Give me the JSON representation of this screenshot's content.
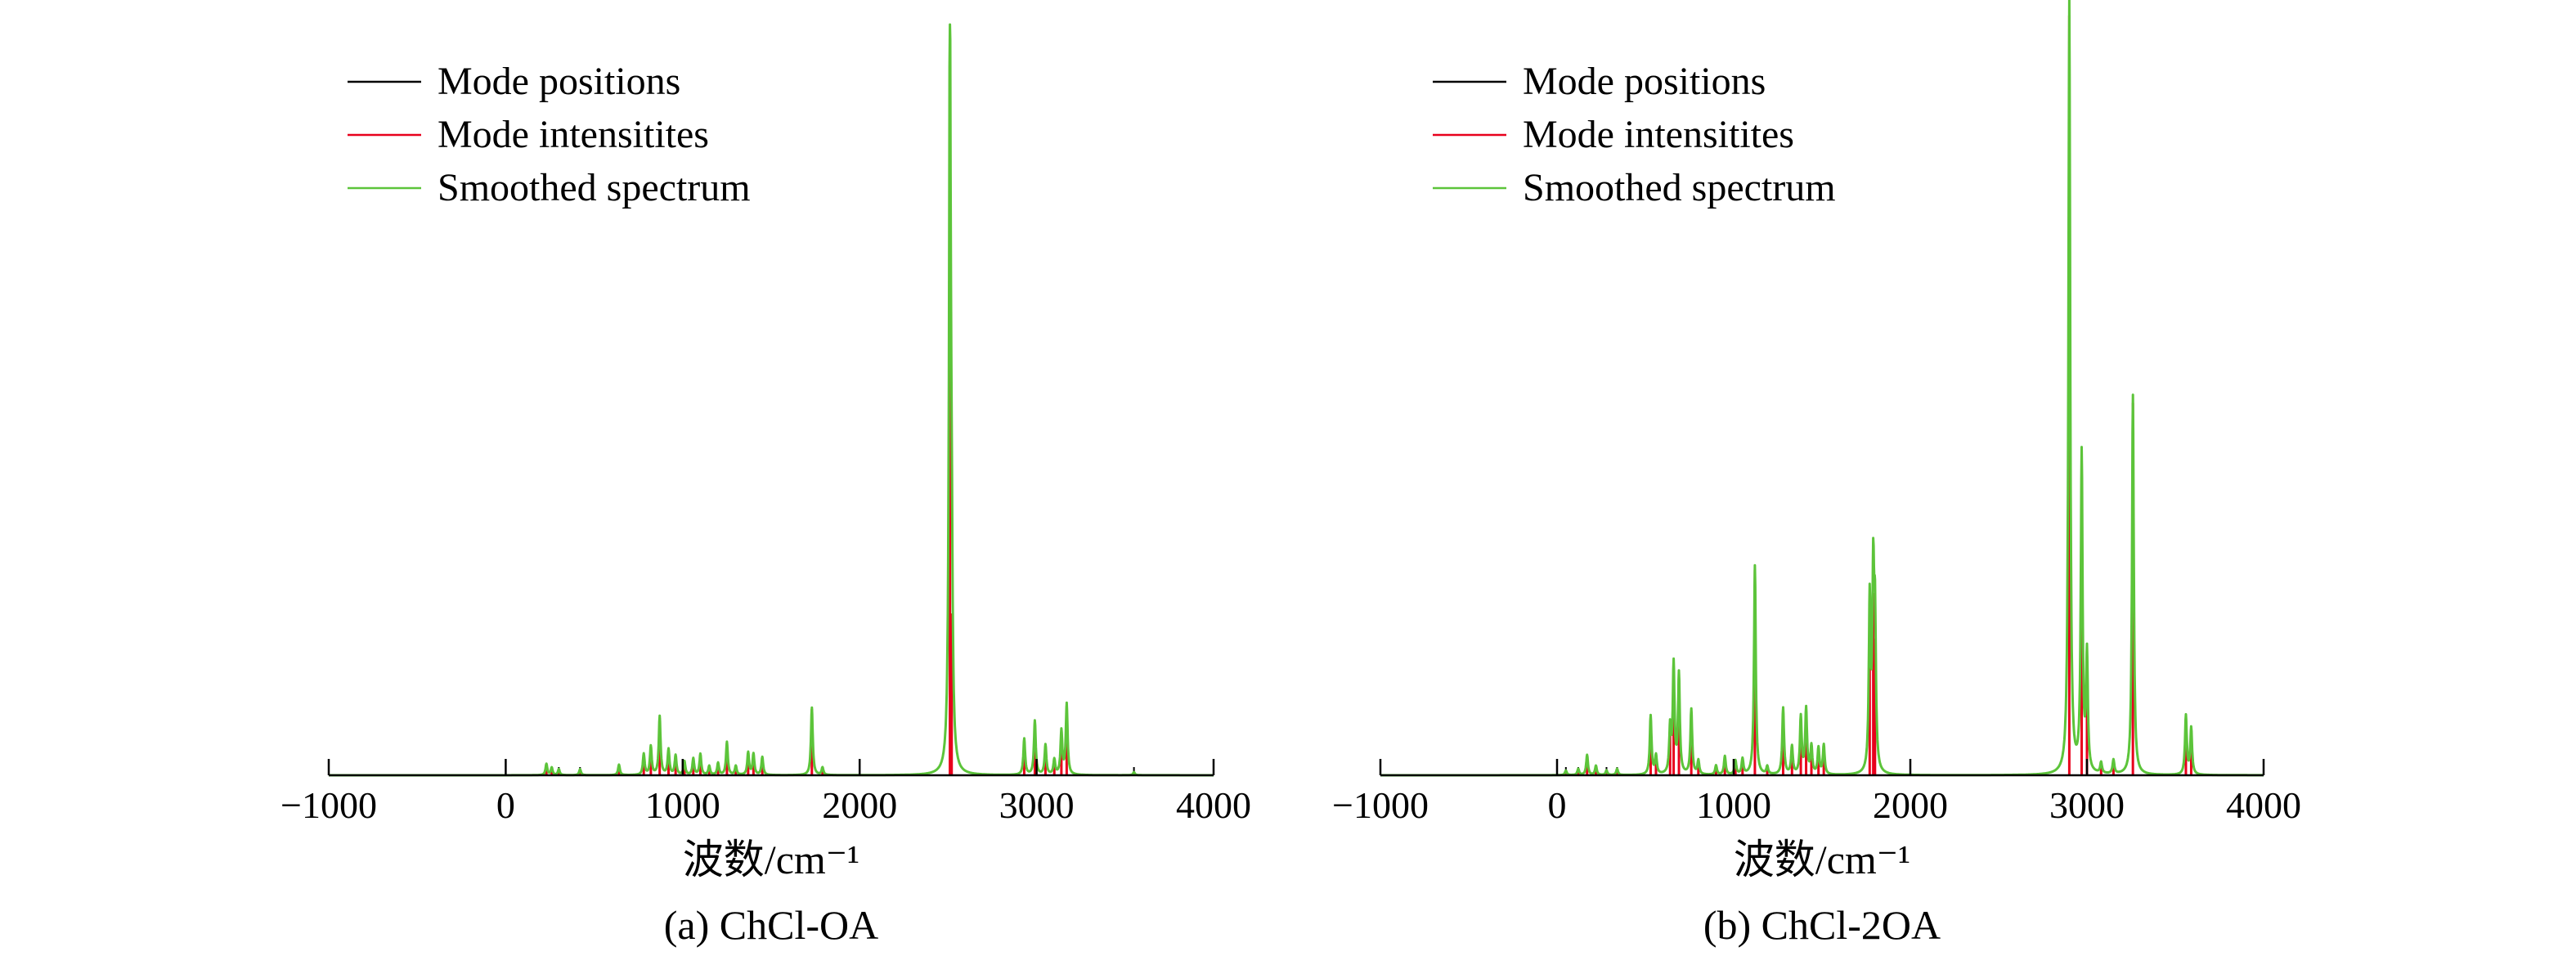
{
  "colors": {
    "positions": "#000000",
    "intensities": "#e8001c",
    "smoothed": "#5cc43a"
  },
  "chart_data": [
    {
      "type": "line",
      "caption": "(a) ChCl-OA",
      "xlabel": "波数/cm⁻¹",
      "ylabel": "",
      "xlim": [
        -1000,
        4000
      ],
      "xticks": [
        -1000,
        0,
        1000,
        2000,
        3000,
        4000
      ],
      "xtick_labels": [
        "−1000",
        "0",
        "1000",
        "2000",
        "3000",
        "4000"
      ],
      "ylim": [
        0,
        1
      ],
      "legend": {
        "position": "top-left",
        "entries": [
          {
            "label": "Mode positions",
            "series": "positions"
          },
          {
            "label": "Mode intensitites",
            "series": "intensities"
          },
          {
            "label": "Smoothed spectrum",
            "series": "smoothed"
          }
        ]
      },
      "modes": [
        [
          230,
          0.015
        ],
        [
          260,
          0.01
        ],
        [
          300,
          0.008
        ],
        [
          420,
          0.008
        ],
        [
          640,
          0.014
        ],
        [
          780,
          0.028
        ],
        [
          820,
          0.038
        ],
        [
          870,
          0.078
        ],
        [
          920,
          0.034
        ],
        [
          960,
          0.026
        ],
        [
          1010,
          0.018
        ],
        [
          1060,
          0.022
        ],
        [
          1100,
          0.028
        ],
        [
          1150,
          0.012
        ],
        [
          1200,
          0.016
        ],
        [
          1250,
          0.044
        ],
        [
          1300,
          0.012
        ],
        [
          1370,
          0.03
        ],
        [
          1400,
          0.028
        ],
        [
          1450,
          0.024
        ],
        [
          1730,
          0.09
        ],
        [
          1790,
          0.01
        ],
        [
          2510,
          1.0
        ],
        [
          2520,
          0.22
        ],
        [
          2930,
          0.048
        ],
        [
          2990,
          0.072
        ],
        [
          3050,
          0.04
        ],
        [
          3100,
          0.02
        ],
        [
          3140,
          0.058
        ],
        [
          3170,
          0.094
        ],
        [
          3550,
          0.004
        ]
      ]
    },
    {
      "type": "line",
      "caption": "(b) ChCl-2OA",
      "xlabel": "波数/cm⁻¹",
      "ylabel": "",
      "xlim": [
        -1000,
        4000
      ],
      "xticks": [
        -1000,
        0,
        1000,
        2000,
        3000,
        4000
      ],
      "xtick_labels": [
        "−1000",
        "0",
        "1000",
        "2000",
        "3000",
        "4000"
      ],
      "ylim": [
        0,
        1
      ],
      "legend": {
        "position": "top-left",
        "entries": [
          {
            "label": "Mode positions",
            "series": "positions"
          },
          {
            "label": "Mode intensitites",
            "series": "intensities"
          },
          {
            "label": "Smoothed spectrum",
            "series": "smoothed"
          }
        ]
      },
      "modes": [
        [
          50,
          0.006
        ],
        [
          120,
          0.008
        ],
        [
          170,
          0.026
        ],
        [
          220,
          0.012
        ],
        [
          280,
          0.006
        ],
        [
          340,
          0.008
        ],
        [
          530,
          0.076
        ],
        [
          560,
          0.024
        ],
        [
          640,
          0.058
        ],
        [
          660,
          0.14
        ],
        [
          690,
          0.128
        ],
        [
          760,
          0.084
        ],
        [
          800,
          0.018
        ],
        [
          900,
          0.012
        ],
        [
          950,
          0.024
        ],
        [
          1010,
          0.018
        ],
        [
          1050,
          0.02
        ],
        [
          1120,
          0.27
        ],
        [
          1190,
          0.01
        ],
        [
          1280,
          0.086
        ],
        [
          1330,
          0.036
        ],
        [
          1380,
          0.074
        ],
        [
          1410,
          0.084
        ],
        [
          1440,
          0.036
        ],
        [
          1480,
          0.034
        ],
        [
          1510,
          0.038
        ],
        [
          1770,
          0.22
        ],
        [
          1790,
          0.24
        ],
        [
          1800,
          0.18
        ],
        [
          2900,
          1.0
        ],
        [
          2970,
          0.41
        ],
        [
          3000,
          0.15
        ],
        [
          3080,
          0.014
        ],
        [
          3150,
          0.018
        ],
        [
          3260,
          0.49
        ],
        [
          3560,
          0.076
        ],
        [
          3590,
          0.06
        ]
      ]
    }
  ]
}
